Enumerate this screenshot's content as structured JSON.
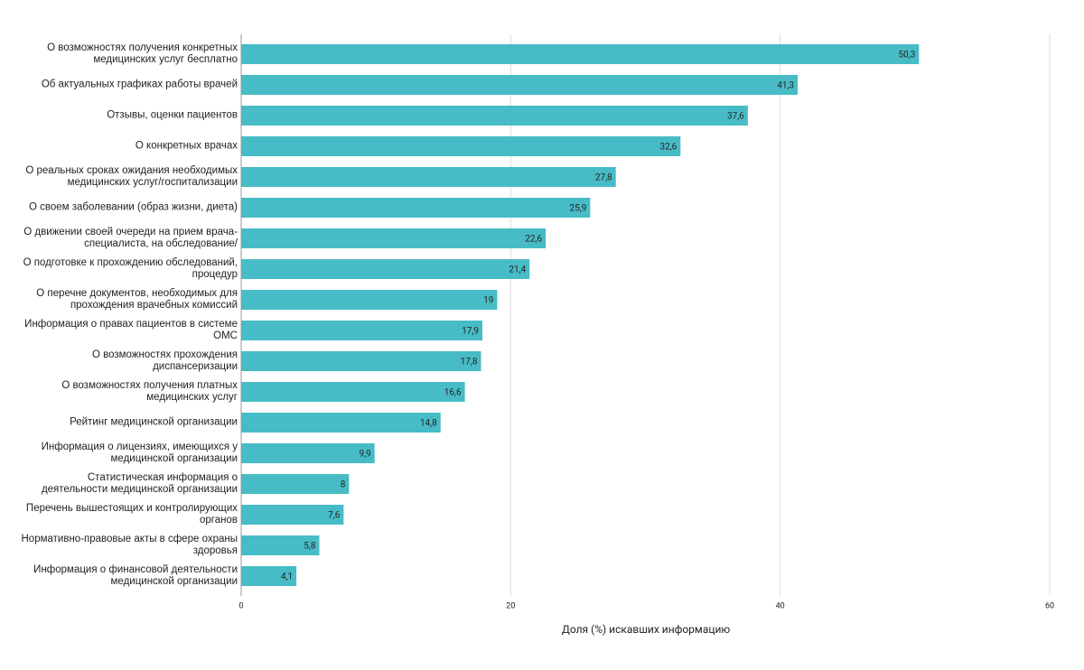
{
  "chart_data": {
    "type": "bar",
    "orientation": "horizontal",
    "x_label": "Доля (%) искавших информацию",
    "categories": [
      "О возможностях получения конкретных медицинских услуг бесплатно",
      "Об актуальных графиках работы врачей",
      "Отзывы, оценки пациентов",
      "О конкретных врачах",
      "О реальных сроках ожидания необходимых медицинских услуг/госпитализации",
      "О своем заболевании (образ жизни, диета)",
      "О движении своей очереди на прием врача-специалиста, на обследование/",
      "О подготовке к прохождению обследований, процедур",
      "О перечне документов, необходимых для прохождения врачебных комиссий",
      "Информация о правах пациентов в системе ОМС",
      "О возможностях прохождения диспансеризации",
      "О возможностях получения платных медицинских услуг",
      "Рейтинг медицинской организации",
      "Информация о лицензиях, имеющихся у медицинской организации",
      "Статистическая информация о деятельности медицинской организации",
      "Перечень вышестоящих и контролирующих органов",
      "Нормативно-правовые акты в сфере охраны здоровья",
      "Информация о финансовой деятельности медицинской организации"
    ],
    "values": [
      50.3,
      41.3,
      37.6,
      32.6,
      27.8,
      25.9,
      22.6,
      21.4,
      19,
      17.9,
      17.8,
      16.6,
      14.8,
      9.9,
      8,
      7.6,
      5.8,
      4.1
    ],
    "value_labels": [
      "50,3",
      "41,3",
      "37,6",
      "32,6",
      "27,8",
      "25,9",
      "22,6",
      "21,4",
      "19",
      "17,9",
      "17,8",
      "16,6",
      "14,8",
      "9,9",
      "8",
      "7,6",
      "5,8",
      "4,1"
    ],
    "color": "#47bcc6",
    "xlim": [
      0,
      60
    ],
    "xticks": [
      0,
      20,
      40,
      60
    ],
    "grid": true
  }
}
